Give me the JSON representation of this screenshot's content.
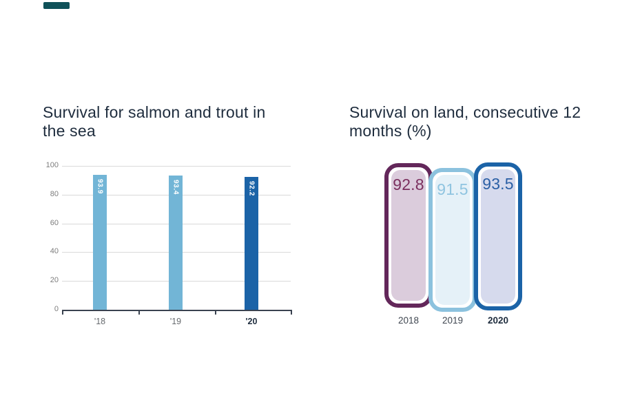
{
  "logo_fragment": {
    "color": "#0f5159"
  },
  "chart_data": [
    {
      "type": "bar",
      "title": "Survival for salmon and trout in the sea",
      "categories": [
        "'18",
        "'19",
        "'20"
      ],
      "values": [
        93.9,
        93.4,
        92.2
      ],
      "value_labels": [
        "93.9",
        "93.4",
        "92.2"
      ],
      "bar_colors": [
        "#72b5d6",
        "#72b5d6",
        "#1b63a7"
      ],
      "ylim": [
        0,
        100
      ],
      "yticks": [
        0,
        20,
        40,
        60,
        80,
        100
      ],
      "grid": "on",
      "legend": "none",
      "emphasized_category": "'20"
    },
    {
      "type": "bar",
      "variant": "rounded-card-columns",
      "title": "Survival on land, consecutive 12 months (%)",
      "categories": [
        "2018",
        "2019",
        "2020"
      ],
      "values": [
        92.8,
        91.5,
        93.5
      ],
      "value_labels": [
        "92.8",
        "91.5",
        "93.5"
      ],
      "cards": [
        {
          "year": "2018",
          "value": "92.8",
          "border_color": "#63275a",
          "fill_color": "#dbccdc",
          "text_color": "#7b2f5e"
        },
        {
          "year": "2019",
          "value": "91.5",
          "border_color": "#8cc2de",
          "fill_color": "#e5f1f8",
          "text_color": "#8fc4e0"
        },
        {
          "year": "2020",
          "value": "93.5",
          "border_color": "#1b63a7",
          "fill_color": "#d6daed",
          "text_color": "#2a5fa5"
        }
      ],
      "emphasized_category": "2020"
    }
  ]
}
